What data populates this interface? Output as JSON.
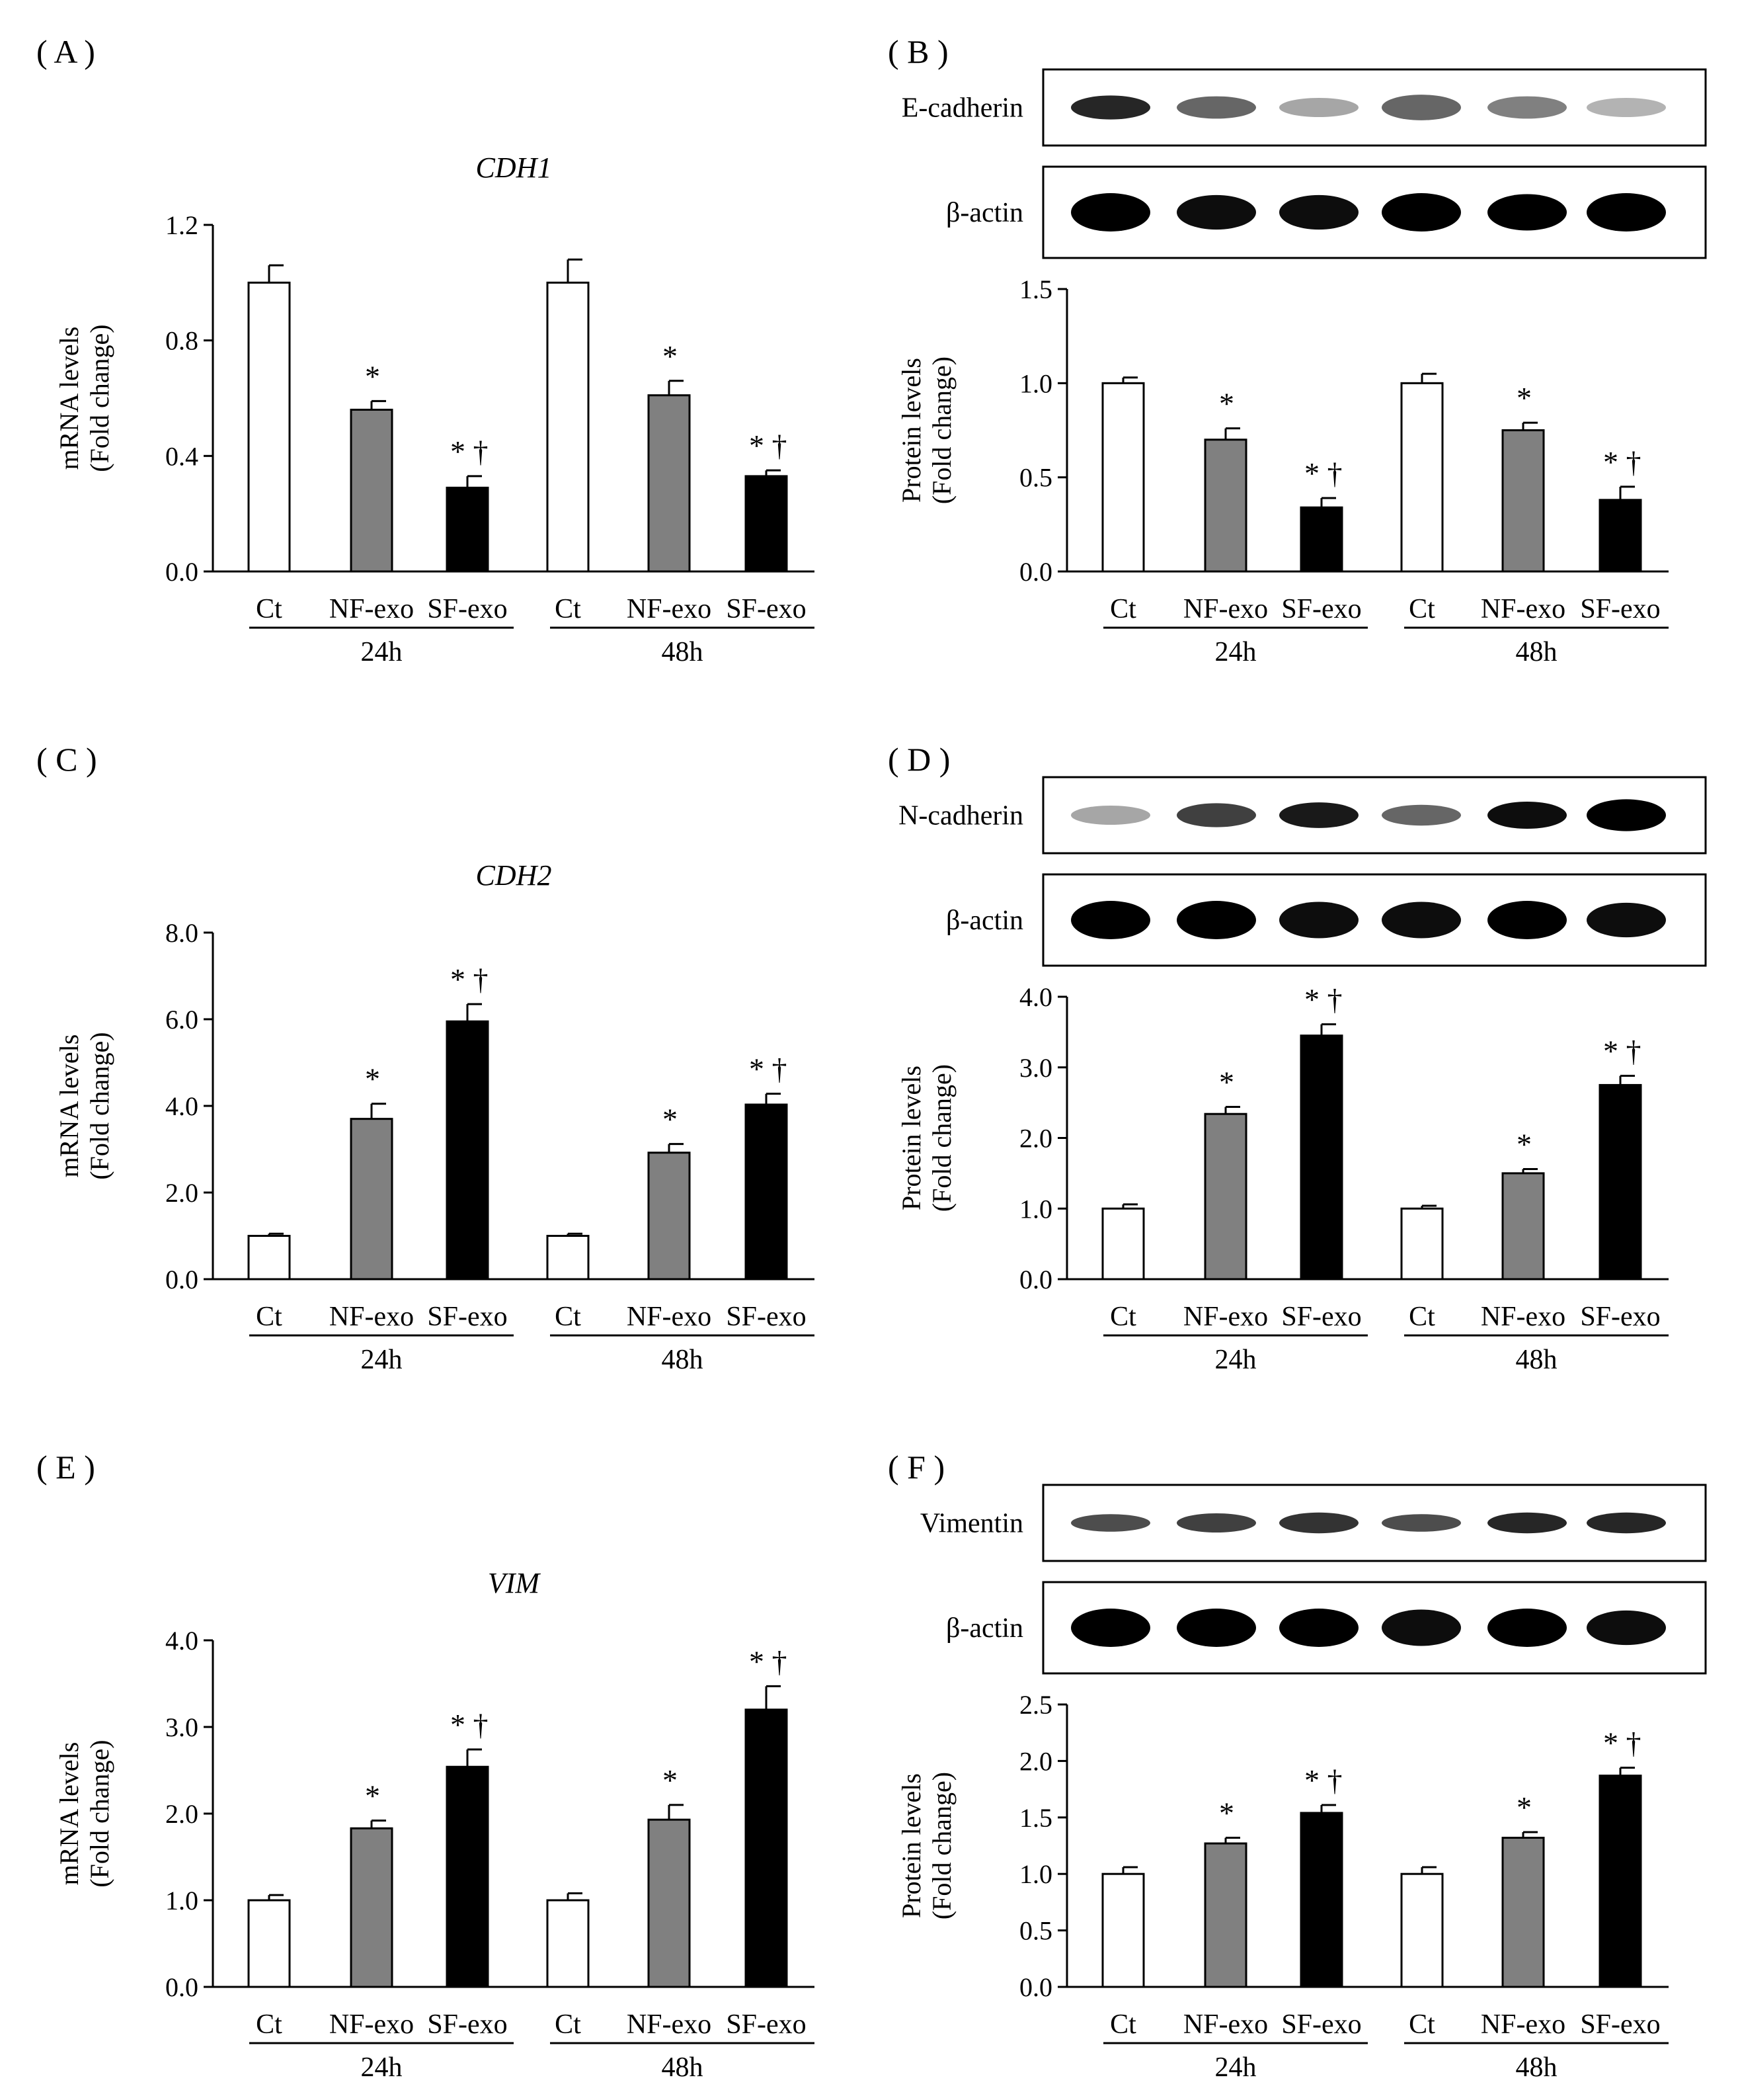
{
  "figure": {
    "panels": [
      {
        "letter": "( A )"
      },
      {
        "letter": "( B )",
        "blots": [
          {
            "label": "E-cadherin",
            "intensity": [
              0.85,
              0.6,
              0.35,
              0.6,
              0.5,
              0.3
            ],
            "thickness": [
              0.75,
              0.7,
              0.6,
              0.8,
              0.7,
              0.6
            ]
          },
          {
            "label": "β-actin",
            "intensity": [
              1,
              0.95,
              0.95,
              1,
              1,
              1
            ],
            "thickness": [
              1,
              0.9,
              0.9,
              1,
              0.95,
              1
            ]
          }
        ]
      },
      {
        "letter": "( C )"
      },
      {
        "letter": "( D )",
        "blots": [
          {
            "label": "N-cadherin",
            "intensity": [
              0.35,
              0.75,
              0.9,
              0.6,
              0.95,
              1
            ],
            "thickness": [
              0.6,
              0.75,
              0.8,
              0.65,
              0.85,
              1
            ]
          },
          {
            "label": "β-actin",
            "intensity": [
              1,
              1,
              0.95,
              0.95,
              1,
              0.95
            ],
            "thickness": [
              1,
              1,
              0.95,
              0.95,
              1,
              0.9
            ]
          }
        ]
      },
      {
        "letter": "( E )"
      },
      {
        "letter": "( F )",
        "blots": [
          {
            "label": "Vimentin",
            "intensity": [
              0.7,
              0.75,
              0.8,
              0.7,
              0.85,
              0.85
            ],
            "thickness": [
              0.55,
              0.6,
              0.65,
              0.55,
              0.65,
              0.65
            ]
          },
          {
            "label": "β-actin",
            "intensity": [
              1,
              1,
              1,
              0.95,
              1,
              0.95
            ],
            "thickness": [
              1,
              1,
              1,
              0.95,
              1,
              0.9
            ]
          }
        ]
      }
    ],
    "colors": {
      "Ct": "#ffffff",
      "NF-exo": "#808080",
      "SF-exo": "#000000"
    }
  },
  "chart_data": [
    {
      "type": "bar",
      "title": "CDH1",
      "ylabel": [
        "mRNA levels",
        "(Fold change)"
      ],
      "ylim": [
        0,
        1.2
      ],
      "yticks": [
        "0.0",
        "0.4",
        "0.8",
        "1.2"
      ],
      "categories": [
        "Ct",
        "NF-exo",
        "SF-exo",
        "Ct",
        "NF-exo",
        "SF-exo"
      ],
      "groups": [
        "24h",
        "48h"
      ],
      "values": [
        1.0,
        0.56,
        0.29,
        1.0,
        0.61,
        0.33
      ],
      "errors": [
        0.06,
        0.03,
        0.04,
        0.08,
        0.05,
        0.02
      ],
      "annotations": [
        "",
        "*",
        "* †",
        "",
        "*",
        "* †"
      ]
    },
    {
      "type": "bar",
      "title": "",
      "ylabel": [
        "Protein levels",
        "(Fold change)"
      ],
      "ylim": [
        0,
        1.5
      ],
      "yticks": [
        "0.0",
        "0.5",
        "1.0",
        "1.5"
      ],
      "categories": [
        "Ct",
        "NF-exo",
        "SF-exo",
        "Ct",
        "NF-exo",
        "SF-exo"
      ],
      "groups": [
        "24h",
        "48h"
      ],
      "values": [
        1.0,
        0.7,
        0.34,
        1.0,
        0.75,
        0.38
      ],
      "errors": [
        0.03,
        0.06,
        0.05,
        0.05,
        0.04,
        0.07
      ],
      "annotations": [
        "",
        "*",
        "* †",
        "",
        "*",
        "* †"
      ]
    },
    {
      "type": "bar",
      "title": "CDH2",
      "ylabel": [
        "mRNA levels",
        "(Fold change)"
      ],
      "ylim": [
        0,
        8.0
      ],
      "yticks": [
        "0.0",
        "2.0",
        "4.0",
        "6.0",
        "8.0"
      ],
      "categories": [
        "Ct",
        "NF-exo",
        "SF-exo",
        "Ct",
        "NF-exo",
        "SF-exo"
      ],
      "groups": [
        "24h",
        "48h"
      ],
      "values": [
        1.0,
        3.7,
        5.95,
        1.0,
        2.92,
        4.03
      ],
      "errors": [
        0.05,
        0.35,
        0.4,
        0.05,
        0.2,
        0.25
      ],
      "annotations": [
        "",
        "*",
        "* †",
        "",
        "*",
        "* †"
      ]
    },
    {
      "type": "bar",
      "title": "",
      "ylabel": [
        "Protein levels",
        "(Fold change)"
      ],
      "ylim": [
        0,
        4.0
      ],
      "yticks": [
        "0.0",
        "1.0",
        "2.0",
        "3.0",
        "4.0"
      ],
      "categories": [
        "Ct",
        "NF-exo",
        "SF-exo",
        "Ct",
        "NF-exo",
        "SF-exo"
      ],
      "groups": [
        "24h",
        "48h"
      ],
      "values": [
        1.0,
        2.34,
        3.45,
        1.0,
        1.5,
        2.75
      ],
      "errors": [
        0.06,
        0.1,
        0.16,
        0.04,
        0.06,
        0.13
      ],
      "annotations": [
        "",
        "*",
        "* †",
        "",
        "*",
        "* †"
      ]
    },
    {
      "type": "bar",
      "title": "VIM",
      "ylabel": [
        "mRNA levels",
        "(Fold change)"
      ],
      "ylim": [
        0,
        4.0
      ],
      "yticks": [
        "0.0",
        "1.0",
        "2.0",
        "3.0",
        "4.0"
      ],
      "categories": [
        "Ct",
        "NF-exo",
        "SF-exo",
        "Ct",
        "NF-exo",
        "SF-exo"
      ],
      "groups": [
        "24h",
        "48h"
      ],
      "values": [
        1.0,
        1.83,
        2.54,
        1.0,
        1.93,
        3.2
      ],
      "errors": [
        0.06,
        0.09,
        0.2,
        0.08,
        0.17,
        0.27
      ],
      "annotations": [
        "",
        "*",
        "* †",
        "",
        "*",
        "* †"
      ]
    },
    {
      "type": "bar",
      "title": "",
      "ylabel": [
        "Protein levels",
        "(Fold change)"
      ],
      "ylim": [
        0,
        2.5
      ],
      "yticks": [
        "0.0",
        "0.5",
        "1.0",
        "1.5",
        "2.0",
        "2.5"
      ],
      "categories": [
        "Ct",
        "NF-exo",
        "SF-exo",
        "Ct",
        "NF-exo",
        "SF-exo"
      ],
      "groups": [
        "24h",
        "48h"
      ],
      "values": [
        1.0,
        1.27,
        1.54,
        1.0,
        1.32,
        1.87
      ],
      "errors": [
        0.06,
        0.05,
        0.07,
        0.06,
        0.05,
        0.07
      ],
      "annotations": [
        "",
        "*",
        "* †",
        "",
        "*",
        "* †"
      ]
    }
  ]
}
